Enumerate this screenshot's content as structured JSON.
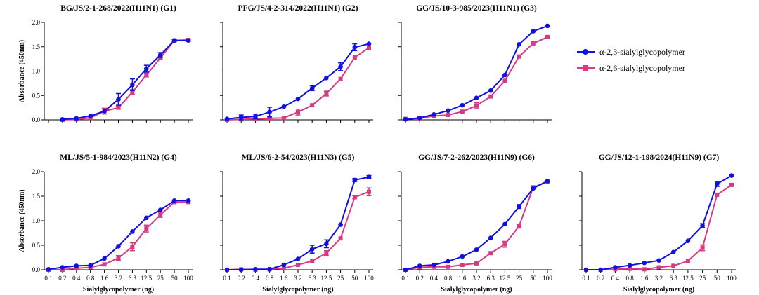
{
  "colors": {
    "series_23": "#1010e0",
    "series_26": "#d63a85",
    "axis": "#000000"
  },
  "legend": {
    "entries": [
      {
        "label": "α-2,3-sialylglycopolymer",
        "marker": "circle"
      },
      {
        "label": "α-2,6-sialylglycopolymer",
        "marker": "square"
      }
    ]
  },
  "chart_data": [
    {
      "type": "line",
      "title": "BG/JS/2-1-268/2022(H11N1) (G1)",
      "xlabel": "",
      "ylabel": "Absorbance (450nm)",
      "categories": [
        "0.1",
        "0.2",
        "0.4",
        "0.8",
        "1.6",
        "3.2",
        "6.3",
        "12.5",
        "25",
        "50",
        "100"
      ],
      "ylim": [
        0,
        2.0
      ],
      "yticks": [
        "0.0",
        "0.5",
        "1.0",
        "1.5",
        "2.0"
      ],
      "show_xticks": false,
      "series": [
        {
          "name": "α-2,3-sialylglycopolymer",
          "values": [
            null,
            0.01,
            0.03,
            0.08,
            0.18,
            0.42,
            0.72,
            1.05,
            1.33,
            1.63,
            1.63
          ],
          "errors": [
            0,
            0,
            0,
            0,
            0,
            0.12,
            0.12,
            0.07,
            0.05,
            0.02,
            0.02
          ]
        },
        {
          "name": "α-2,6-sialylglycopolymer",
          "values": [
            null,
            0.0,
            0.01,
            0.04,
            0.18,
            0.25,
            0.57,
            0.92,
            1.27,
            1.63,
            1.64
          ],
          "errors": [
            0,
            0,
            0,
            0,
            0.06,
            0.03,
            0.05,
            0.04,
            0.03,
            0.02,
            0.02
          ]
        }
      ]
    },
    {
      "type": "line",
      "title": "PFG/JS/4-2-314/2022(H11N1) (G2)",
      "xlabel": "",
      "ylabel": "",
      "categories": [
        "0.1",
        "0.2",
        "0.4",
        "0.8",
        "1.6",
        "3.2",
        "6.3",
        "12.5",
        "25",
        "50",
        "100"
      ],
      "ylim": [
        0,
        2.0
      ],
      "yticks": [],
      "show_xticks": false,
      "series": [
        {
          "name": "α-2,3-sialylglycopolymer",
          "values": [
            0.02,
            0.05,
            0.07,
            0.16,
            0.27,
            0.43,
            0.65,
            0.86,
            1.09,
            1.49,
            1.56
          ],
          "errors": [
            0,
            0.05,
            0.05,
            0.1,
            0,
            0,
            0.05,
            0,
            0.08,
            0.07,
            0
          ]
        },
        {
          "name": "α-2,6-sialylglycopolymer",
          "values": [
            0.0,
            0.01,
            0.02,
            0.03,
            0.04,
            0.16,
            0.3,
            0.54,
            0.84,
            1.28,
            1.48
          ],
          "errors": [
            0,
            0,
            0,
            0,
            0,
            0.06,
            0,
            0.05,
            0,
            0,
            0
          ]
        }
      ]
    },
    {
      "type": "line",
      "title": "GG/JS/10-3-985/2023(H11N1) (G3)",
      "xlabel": "",
      "ylabel": "",
      "categories": [
        "0.1",
        "0.2",
        "0.4",
        "0.8",
        "1.6",
        "3.2",
        "6.3",
        "12.5",
        "25",
        "50",
        "100"
      ],
      "ylim": [
        0,
        2.0
      ],
      "yticks": [],
      "show_xticks": false,
      "series": [
        {
          "name": "α-2,3-sialylglycopolymer",
          "values": [
            0.01,
            0.04,
            0.11,
            0.19,
            0.3,
            0.45,
            0.6,
            0.92,
            1.55,
            1.82,
            1.93
          ],
          "errors": [
            0,
            0,
            0,
            0,
            0,
            0,
            0,
            0,
            0,
            0,
            0
          ]
        },
        {
          "name": "α-2,6-sialylglycopolymer",
          "values": [
            0.02,
            0.03,
            0.08,
            0.1,
            0.17,
            0.29,
            0.48,
            0.8,
            1.3,
            1.57,
            1.7
          ],
          "errors": [
            0,
            0,
            0,
            0,
            0,
            0.06,
            0,
            0,
            0,
            0,
            0
          ]
        }
      ]
    },
    {
      "type": "line",
      "title": "ML/JS/5-1-984/2023(H11N2) (G4)",
      "xlabel": "Sialylglycopolymer (ng)",
      "ylabel": "Absorbance (450nm)",
      "categories": [
        "0.1",
        "0.2",
        "0.4",
        "0.8",
        "1.6",
        "3.2",
        "6.3",
        "12.5",
        "25",
        "50",
        "100"
      ],
      "ylim": [
        0,
        2.0
      ],
      "yticks": [
        "0.0",
        "0.5",
        "1.0",
        "1.5",
        "2.0"
      ],
      "show_xticks": true,
      "series": [
        {
          "name": "α-2,3-sialylglycopolymer",
          "values": [
            0.01,
            0.05,
            0.08,
            0.09,
            0.23,
            0.48,
            0.78,
            1.06,
            1.22,
            1.41,
            1.41
          ],
          "errors": [
            0,
            0,
            0,
            0,
            0,
            0,
            0,
            0,
            0,
            0,
            0
          ]
        },
        {
          "name": "α-2,6-sialylglycopolymer",
          "values": [
            0.0,
            0.0,
            0.03,
            0.05,
            0.11,
            0.24,
            0.47,
            0.84,
            1.12,
            1.38,
            1.38
          ],
          "errors": [
            0,
            0,
            0,
            0,
            0,
            0.05,
            0.08,
            0.07,
            0.05,
            0.02,
            0.02
          ]
        }
      ]
    },
    {
      "type": "line",
      "title": "ML/JS/6-2-54/2023(H11N3) (G5)",
      "xlabel": "Sialylglycopolymer (ng)",
      "ylabel": "",
      "categories": [
        "0.1",
        "0.2",
        "0.4",
        "0.8",
        "1.6",
        "3.2",
        "6.3",
        "12.5",
        "25",
        "50",
        "100"
      ],
      "ylim": [
        0,
        2.0
      ],
      "yticks": [],
      "show_xticks": true,
      "series": [
        {
          "name": "α-2,3-sialylglycopolymer",
          "values": [
            0.0,
            0.0,
            0.01,
            0.01,
            0.1,
            0.22,
            0.42,
            0.53,
            0.92,
            1.83,
            1.89
          ],
          "errors": [
            0,
            0,
            0,
            0,
            0,
            0,
            0.08,
            0.08,
            0,
            0.03,
            0.03
          ]
        },
        {
          "name": "α-2,6-sialylglycopolymer",
          "values": [
            0.0,
            0.01,
            0.0,
            0.01,
            0.03,
            0.1,
            0.18,
            0.34,
            0.64,
            1.48,
            1.59
          ],
          "errors": [
            0,
            0,
            0,
            0,
            0,
            0,
            0,
            0.05,
            0,
            0.03,
            0.08
          ]
        }
      ]
    },
    {
      "type": "line",
      "title": "GG/JS/7-2-262/2023(H11N9) (G6)",
      "xlabel": "Sialylglycopolymer (ng)",
      "ylabel": "",
      "categories": [
        "0.1",
        "0.2",
        "0.4",
        "0.8",
        "1.6",
        "3.2",
        "6.3",
        "12.5",
        "25",
        "50",
        "100"
      ],
      "ylim": [
        0,
        2.0
      ],
      "yticks": [],
      "show_xticks": true,
      "series": [
        {
          "name": "α-2,3-sialylglycopolymer",
          "values": [
            0.0,
            0.08,
            0.1,
            0.17,
            0.27,
            0.41,
            0.65,
            0.93,
            1.29,
            1.66,
            1.81
          ],
          "errors": [
            0,
            0,
            0,
            0,
            0,
            0,
            0,
            0,
            0.04,
            0,
            0
          ]
        },
        {
          "name": "α-2,6-sialylglycopolymer",
          "values": [
            0.0,
            0.05,
            0.06,
            0.06,
            0.1,
            0.13,
            0.34,
            0.52,
            0.89,
            1.68,
            1.79
          ],
          "errors": [
            0,
            0,
            0,
            0,
            0,
            0,
            0,
            0.06,
            0.04,
            0.03,
            0
          ]
        }
      ]
    },
    {
      "type": "line",
      "title": "GG/JS/12-1-198/2024(H11N9) (G7)",
      "xlabel": "Sialylglycopolymer (ng)",
      "ylabel": "",
      "categories": [
        "0.1",
        "0.2",
        "0.4",
        "0.8",
        "1.6",
        "3.2",
        "6.3",
        "12.5",
        "25",
        "50",
        "100"
      ],
      "ylim": [
        0,
        2.0
      ],
      "yticks": [],
      "show_xticks": true,
      "series": [
        {
          "name": "α-2,3-sialylglycopolymer",
          "values": [
            0.0,
            0.0,
            0.05,
            0.09,
            0.14,
            0.19,
            0.36,
            0.59,
            0.9,
            1.75,
            1.92
          ],
          "errors": [
            0,
            0,
            0,
            0,
            0,
            0,
            0,
            0,
            0.04,
            0.05,
            0
          ]
        },
        {
          "name": "α-2,6-sialylglycopolymer",
          "values": [
            0.0,
            0.0,
            0.01,
            0.02,
            0.01,
            0.05,
            0.08,
            0.18,
            0.45,
            1.53,
            1.73
          ],
          "errors": [
            0,
            0,
            0,
            0,
            0,
            0,
            0,
            0,
            0.06,
            0,
            0
          ]
        }
      ]
    }
  ]
}
